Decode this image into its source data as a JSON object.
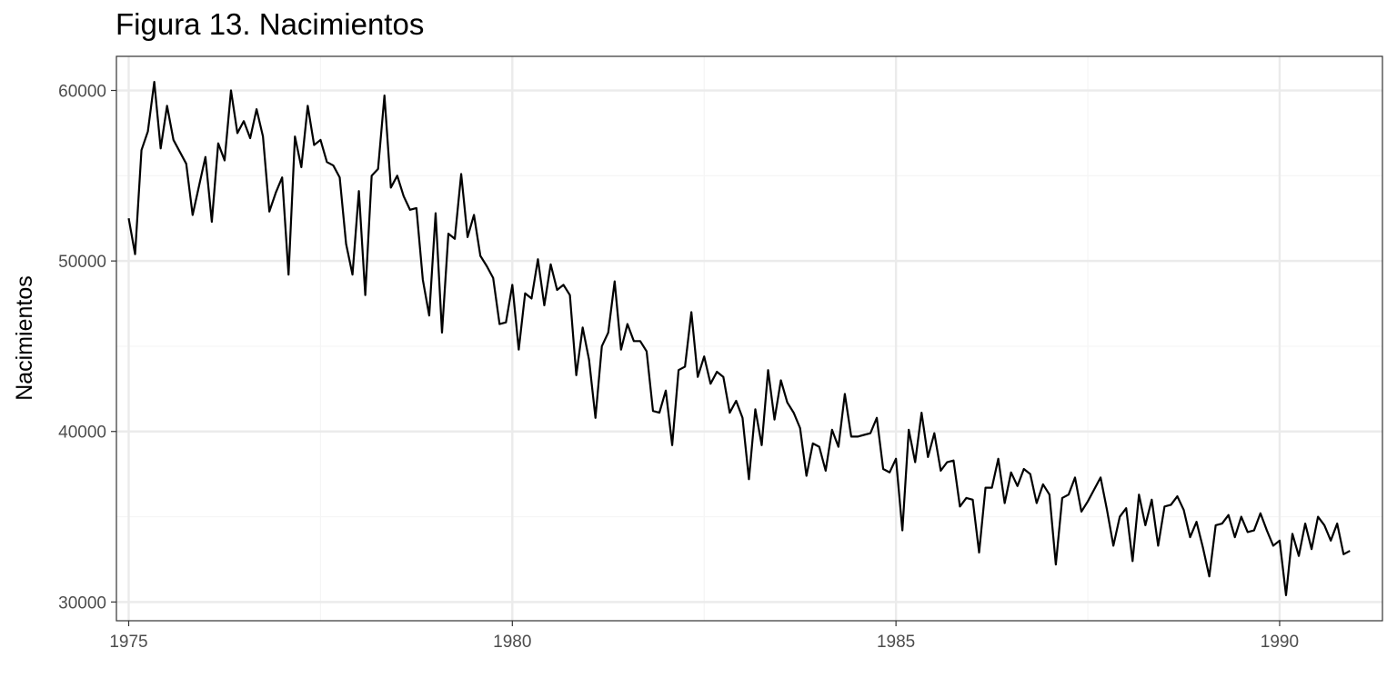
{
  "chart_data": {
    "type": "line",
    "title": "Figura 13. Nacimientos",
    "xlabel": "",
    "ylabel": "Nacimientos",
    "xlim": [
      1974.84,
      1991.34
    ],
    "ylim": [
      28900,
      62000
    ],
    "x_ticks": [
      1975,
      1980,
      1985,
      1990
    ],
    "x_tick_labels": [
      "1975",
      "1980",
      "1985",
      "1990"
    ],
    "x_minor_ticks": [
      1977.5,
      1982.5,
      1987.5
    ],
    "y_ticks": [
      30000,
      40000,
      50000,
      60000
    ],
    "y_tick_labels": [
      "30000",
      "40000",
      "50000",
      "60000"
    ],
    "y_minor_ticks": [
      35000,
      45000,
      55000
    ],
    "grid": true,
    "x_start": 1975.0,
    "x_step": 0.0833333,
    "series": [
      {
        "values": [
          52500,
          50400,
          56500,
          57600,
          60500,
          56600,
          59100,
          57100,
          56400,
          55700,
          52700,
          54400,
          56100,
          52300,
          56900,
          55900,
          60000,
          57500,
          58200,
          57200,
          58900,
          57300,
          52900,
          54000,
          54900,
          49200,
          57300,
          55500,
          59100,
          56800,
          57100,
          55800,
          55600,
          54900,
          51000,
          49200,
          54100,
          48000,
          55000,
          55400,
          59700,
          54300,
          55000,
          53800,
          53000,
          53100,
          48900,
          46800,
          52800,
          45800,
          51600,
          51300,
          55100,
          51400,
          52700,
          50300,
          49700,
          49000,
          46300,
          46400,
          48600,
          44800,
          48100,
          47800,
          50100,
          47400,
          49800,
          48300,
          48600,
          48000,
          43300,
          46100,
          44200,
          40800,
          45000,
          45800,
          48800,
          44800,
          46300,
          45300,
          45300,
          44700,
          41200,
          41100,
          42400,
          39200,
          43600,
          43800,
          47000,
          43200,
          44400,
          42800,
          43500,
          43200,
          41100,
          41800,
          40800,
          37200,
          41300,
          39200,
          43600,
          40700,
          43000,
          41700,
          41100,
          40200,
          37400,
          39300,
          39100,
          37700,
          40100,
          39100,
          42200,
          39700,
          39700,
          39800,
          39900,
          40800,
          37800,
          37600,
          38400,
          34200,
          40100,
          38200,
          41100,
          38500,
          39900,
          37700,
          38200,
          38300,
          35600,
          36100,
          36000,
          32900,
          36700,
          36700,
          38400,
          35800,
          37600,
          36800,
          37800,
          37500,
          35800,
          36900,
          36300,
          32200,
          36100,
          36300,
          37300,
          35300,
          35900,
          36600,
          37300,
          35400,
          33300,
          35000,
          35500,
          32400,
          36300,
          34500,
          36000,
          33300,
          35600,
          35700,
          36200,
          35400,
          33800,
          34700,
          33200,
          31500,
          34500,
          34600,
          35100,
          33800,
          35000,
          34100,
          34200,
          35200,
          34200,
          33300,
          33600,
          30400,
          34000,
          32700,
          34600,
          33100,
          35000,
          34500,
          33600,
          34600,
          32800,
          33000
        ]
      }
    ]
  },
  "colors": {
    "background": "#ffffff",
    "panel_border": "#333333",
    "grid_major": "#ebebeb",
    "grid_minor": "#f5f5f5",
    "line": "#000000",
    "tick_text": "#4d4d4d"
  }
}
